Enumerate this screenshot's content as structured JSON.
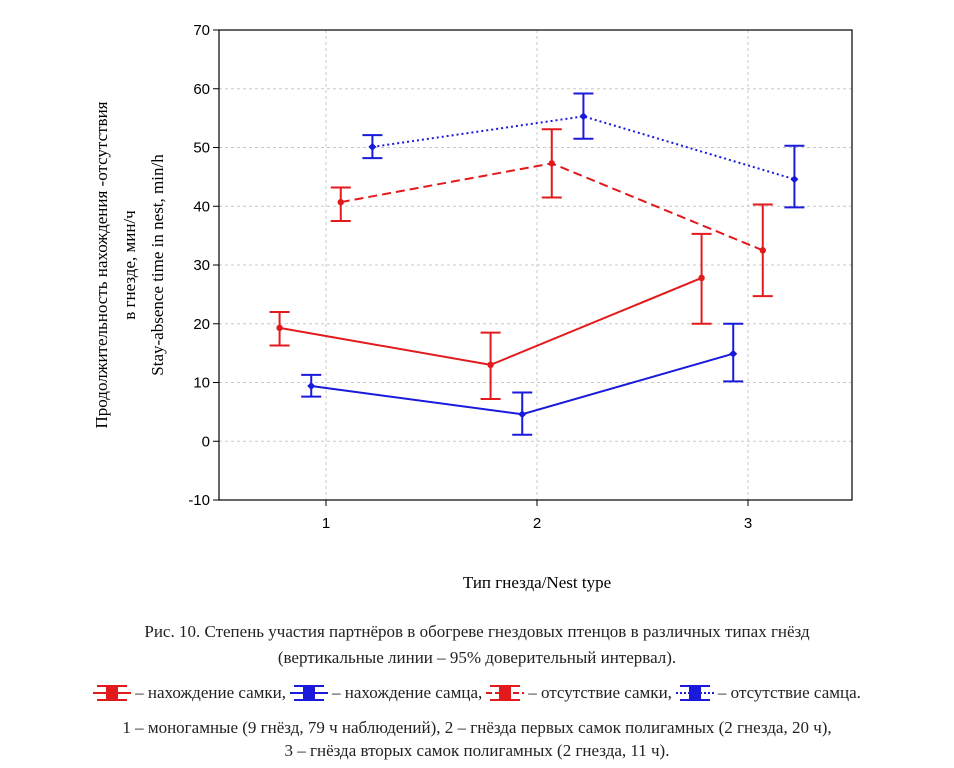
{
  "chart_data": {
    "type": "line",
    "xlabel": "Тип гнезда/Nest type",
    "ylabel_lines": [
      "Продолжительность нахождения -отсутствия",
      "в гнезде, мин/ч",
      "Stay-absence time in nest, min/h"
    ],
    "x_categories": [
      "1",
      "2",
      "3"
    ],
    "ylim": [
      -10,
      70
    ],
    "yticks": [
      "-10",
      "0",
      "10",
      "20",
      "30",
      "40",
      "50",
      "60",
      "70"
    ],
    "grid": true,
    "series": [
      {
        "name": "нахождение самки",
        "color": "#e31a1c",
        "line_style": "solid",
        "x": [
          0.78,
          1.78,
          2.78
        ],
        "values": [
          19.3,
          13.0,
          27.8
        ],
        "ci_low": [
          16.3,
          7.2,
          20.0
        ],
        "ci_high": [
          22.0,
          18.5,
          35.3
        ]
      },
      {
        "name": "нахождение самца",
        "color": "#1a1adc",
        "line_style": "solid",
        "x": [
          0.93,
          1.93,
          2.93
        ],
        "values": [
          9.4,
          4.6,
          14.9
        ],
        "ci_low": [
          7.6,
          1.1,
          10.2
        ],
        "ci_high": [
          11.3,
          8.3,
          20.0
        ]
      },
      {
        "name": "отсутствие самки",
        "color": "#e31a1c",
        "line_style": "dashed",
        "x": [
          1.07,
          2.07,
          3.07
        ],
        "values": [
          40.7,
          47.3,
          32.5
        ],
        "ci_low": [
          37.5,
          41.5,
          24.7
        ],
        "ci_high": [
          43.2,
          53.1,
          40.3
        ]
      },
      {
        "name": "отсутствие самца",
        "color": "#1a1adc",
        "line_style": "dotted",
        "x": [
          1.22,
          2.22,
          3.22
        ],
        "values": [
          50.1,
          55.3,
          44.6
        ],
        "ci_low": [
          48.2,
          51.5,
          39.8
        ],
        "ci_high": [
          52.1,
          59.2,
          50.3
        ]
      }
    ]
  },
  "caption": {
    "line1": "Рис. 10. Степень участия партнёров в обогреве гнездовых птенцов в различных типах гнёзд",
    "line2": "(вертикальные линии – 95% доверительный интервал).",
    "legend": [
      {
        "text": "– нахождение самки,",
        "color": "#e31a1c"
      },
      {
        "text": "– нахождение самца,",
        "color": "#1a1adc"
      },
      {
        "text": "– отсутствие самки,",
        "color": "#e31a1c"
      },
      {
        "text": "– отсутствие самца.",
        "color": "#1a1adc"
      }
    ],
    "note1": "1 – моногамные (9 гнёзд, 79 ч наблюдений), 2 – гнёзда первых самок полигамных (2 гнезда, 20 ч),",
    "note2": "3 – гнёзда вторых самок полигамных (2 гнезда, 11 ч)."
  }
}
